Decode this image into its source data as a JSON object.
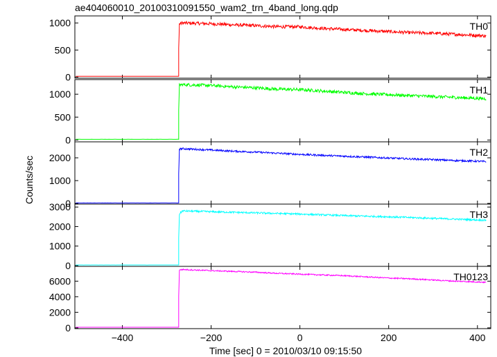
{
  "chart_data": {
    "type": "line",
    "title": "ae404060010_20100310091550_wam2_trn_4band_long.qdp",
    "xlabel": "Time [sec] 0 = 2010/03/10 09:15:50",
    "ylabel": "Counts/sec",
    "xlim": [
      -507,
      430
    ],
    "xticks": [
      -400,
      -200,
      0,
      200,
      400
    ],
    "grid": false,
    "onset_time": -273,
    "panels": [
      {
        "name": "TH0",
        "color": "#ff0000",
        "ylim": [
          -20,
          1130
        ],
        "yticks": [
          0,
          500,
          1000
        ],
        "pre_level": 15,
        "x": [
          -273,
          -265,
          -200,
          -150,
          -100,
          -50,
          0,
          50,
          100,
          150,
          200,
          250,
          300,
          350,
          400,
          420
        ],
        "values": [
          980,
          1000,
          985,
          965,
          950,
          930,
          930,
          900,
          880,
          860,
          840,
          820,
          810,
          790,
          770,
          760
        ],
        "noise": 30
      },
      {
        "name": "TH1",
        "color": "#00ff00",
        "ylim": [
          -40,
          1320
        ],
        "yticks": [
          0,
          500,
          1000
        ],
        "pre_level": 15,
        "x": [
          -273,
          -265,
          -200,
          -150,
          -100,
          -50,
          0,
          50,
          100,
          150,
          200,
          250,
          300,
          350,
          400,
          420
        ],
        "values": [
          1200,
          1210,
          1190,
          1160,
          1140,
          1110,
          1100,
          1070,
          1040,
          1010,
          990,
          970,
          950,
          930,
          910,
          900
        ],
        "noise": 35
      },
      {
        "name": "TH2",
        "color": "#0000ff",
        "ylim": [
          -30,
          2700
        ],
        "yticks": [
          0,
          1000,
          2000
        ],
        "pre_level": 20,
        "x": [
          -273,
          -265,
          -200,
          -150,
          -100,
          -50,
          0,
          50,
          100,
          150,
          200,
          250,
          300,
          350,
          400,
          420
        ],
        "values": [
          2380,
          2400,
          2340,
          2290,
          2250,
          2200,
          2150,
          2110,
          2070,
          2030,
          1990,
          1950,
          1920,
          1880,
          1850,
          1830
        ],
        "noise": 40
      },
      {
        "name": "TH3",
        "color": "#00ffff",
        "ylim": [
          -40,
          3150
        ],
        "yticks": [
          0,
          1000,
          2000,
          3000
        ],
        "pre_level": 30,
        "x": [
          -273,
          -265,
          -200,
          -150,
          -100,
          -50,
          0,
          50,
          100,
          150,
          200,
          250,
          300,
          350,
          400,
          420
        ],
        "values": [
          2600,
          2800,
          2760,
          2730,
          2700,
          2670,
          2640,
          2600,
          2560,
          2530,
          2500,
          2460,
          2420,
          2380,
          2340,
          2320
        ],
        "noise": 45
      },
      {
        "name": "TH0123",
        "color": "#ff00ff",
        "ylim": [
          -100,
          7900
        ],
        "yticks": [
          0,
          2000,
          4000,
          6000
        ],
        "pre_level": 80,
        "x": [
          -273,
          -265,
          -200,
          -150,
          -100,
          -50,
          0,
          50,
          100,
          150,
          200,
          250,
          300,
          350,
          400,
          420
        ],
        "values": [
          7400,
          7500,
          7350,
          7250,
          7150,
          7000,
          6900,
          6800,
          6700,
          6550,
          6400,
          6300,
          6150,
          6000,
          5900,
          5850
        ],
        "noise": 80
      }
    ]
  }
}
